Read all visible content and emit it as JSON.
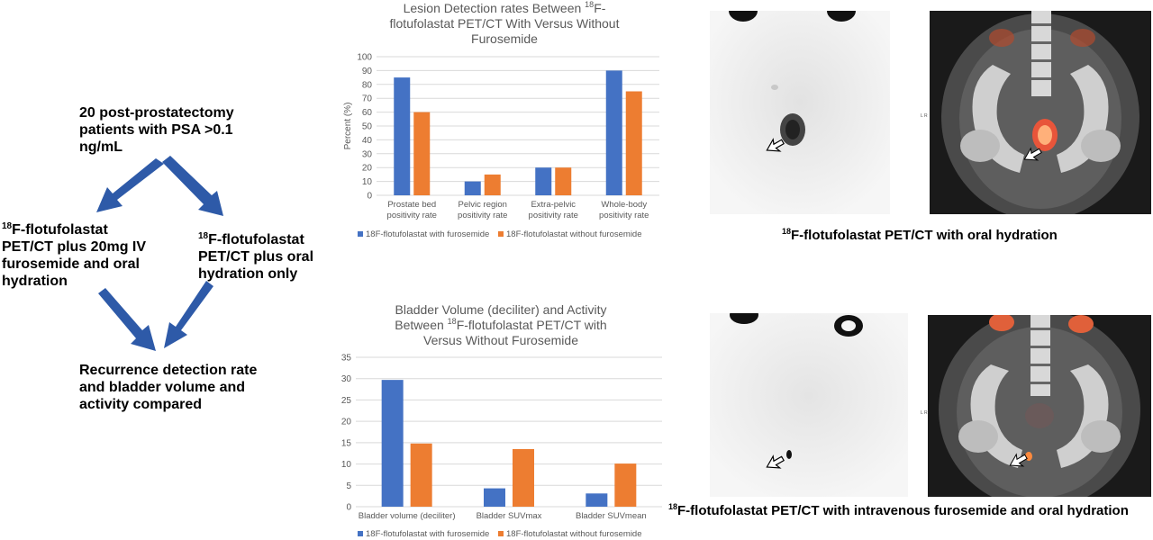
{
  "flow": {
    "start": "20 post-prostatectomy patients with PSA >0.1 ng/mL",
    "left_arm": {
      "sup": "18",
      "text_line1": "F-flotufolastat",
      "text_rest": "PET/CT plus 20mg IV furosemide and oral hydration"
    },
    "right_arm": {
      "sup": "18",
      "text_line1": "F-flotufolastat",
      "text_rest": "PET/CT plus oral hydration only"
    },
    "end": "Recurrence detection rate and bladder volume and activity compared",
    "arrow_color": "#2e5aa8"
  },
  "chart_data": [
    {
      "type": "bar",
      "title_part1": "Lesion Detection rates Between ",
      "title_sup": "18",
      "title_part2": "F-",
      "title_line2": "flotufolastat PET/CT With Versus Without",
      "title_line3": "Furosemide",
      "ylabel": "Percent (%)",
      "ylim": [
        0,
        100
      ],
      "yticks": [
        "0",
        "10",
        "20",
        "30",
        "40",
        "50",
        "60",
        "70",
        "80",
        "90",
        "100"
      ],
      "categories": [
        [
          "Prostate bed",
          "positivity rate"
        ],
        [
          "Pelvic region",
          "positivity rate"
        ],
        [
          "Extra-pelvic",
          "positivity rate"
        ],
        [
          "Whole-body",
          "positivity rate"
        ]
      ],
      "series": [
        {
          "name": "18F-flotufolastat with furosemide",
          "color": "#4472c4",
          "values": [
            85,
            10,
            20,
            90
          ]
        },
        {
          "name": "18F-flotufolastat without furosemide",
          "color": "#ed7d31",
          "values": [
            60,
            15,
            20,
            75
          ]
        }
      ],
      "grid": true,
      "legend": "bottom"
    },
    {
      "type": "bar",
      "title_part1": "Bladder Volume (deciliter) and Activity",
      "title_line2_part1": "Between ",
      "title_sup": "18",
      "title_line2_part2": "F-flotufolastat PET/CT with",
      "title_line3": "Versus Without Furosemide",
      "ylabel": "",
      "ylim": [
        0,
        35
      ],
      "yticks": [
        "0",
        "5",
        "10",
        "15",
        "20",
        "25",
        "30",
        "35"
      ],
      "categories": [
        [
          "Bladder volume (deciliter)"
        ],
        [
          "Bladder SUVmax"
        ],
        [
          "Bladder SUVmean"
        ]
      ],
      "series": [
        {
          "name": "18F-flotufolastat with furosemide",
          "color": "#4472c4",
          "values": [
            29.7,
            4.3,
            3.1
          ]
        },
        {
          "name": "18F-flotufolastat without furosemide",
          "color": "#ed7d31",
          "values": [
            14.8,
            13.5,
            10.1
          ]
        }
      ],
      "grid": true,
      "legend": "bottom"
    }
  ],
  "images": {
    "top_caption_sup": "18",
    "top_caption": "F-flotufolastat PET/CT with oral hydration",
    "bottom_caption_sup": "18",
    "bottom_caption": "F-flotufolastat PET/CT with intravenous furosemide and oral hydration",
    "orientation_label": "L R"
  }
}
